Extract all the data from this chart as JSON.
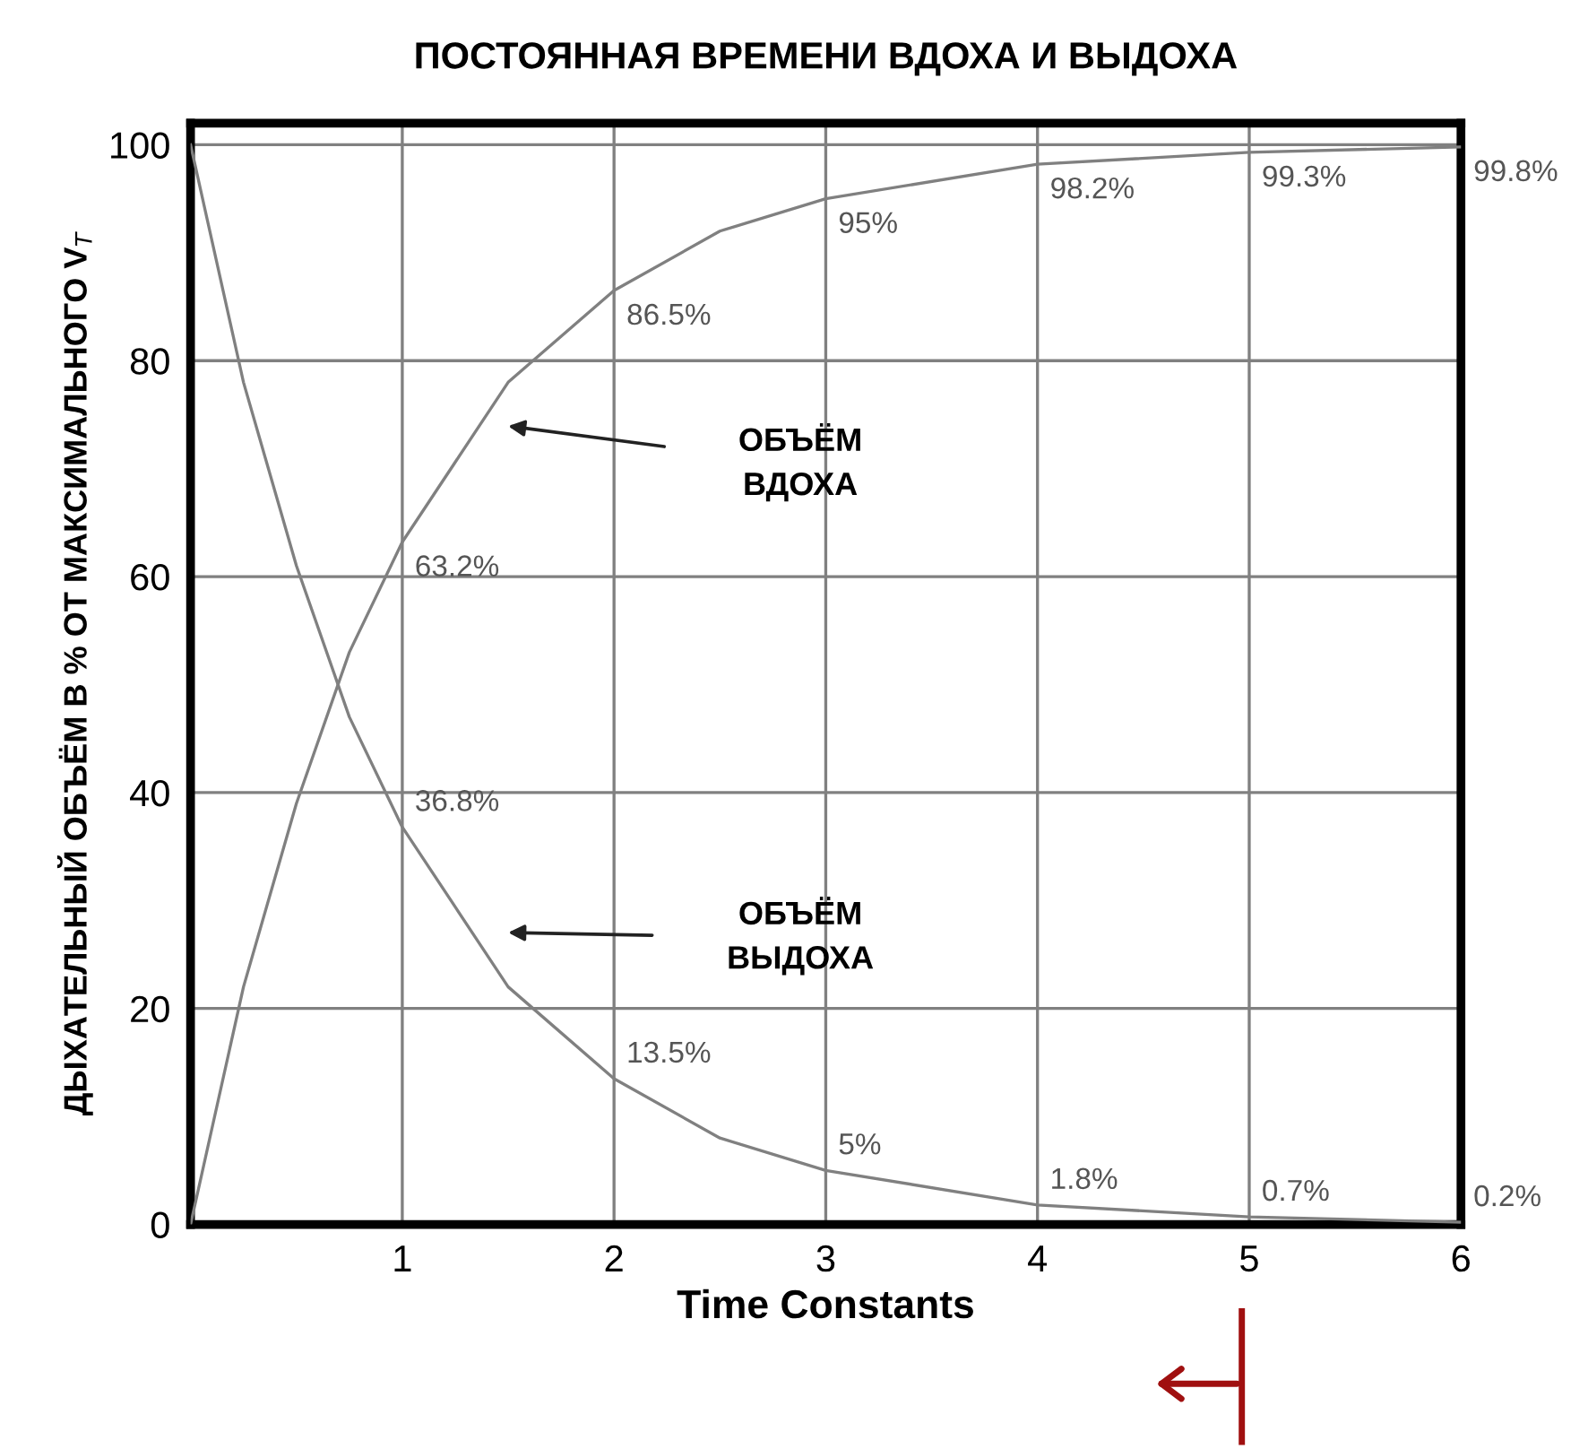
{
  "chart_data": {
    "type": "line",
    "title": "ПОСТОЯННАЯ ВРЕМЕНИ ВДОХА И ВЫДОХА",
    "xlabel": "Time Constants",
    "ylabel": "ДЫХАТЕЛЬНЫЙ ОБЪЁМ В % ОТ МАКСИМАЛЬНОГО V$_{T}$",
    "x": [
      0,
      0.25,
      0.5,
      0.75,
      1,
      1.5,
      2,
      2.5,
      3,
      4,
      5,
      6
    ],
    "series": [
      {
        "color": "#808080",
        "values": [
          0,
          22,
          39,
          53,
          63.2,
          78,
          86.5,
          92,
          95,
          98.2,
          99.3,
          99.8
        ],
        "value_labels": [
          null,
          null,
          null,
          null,
          "63.2%",
          null,
          "86.5%",
          null,
          "95%",
          "98.2%",
          "99.3%",
          "99.8%"
        ]
      },
      {
        "color": "#808080",
        "values": [
          100,
          78,
          61,
          47,
          36.8,
          22,
          13.5,
          8,
          5,
          1.8,
          0.7,
          0.2
        ],
        "value_labels": [
          null,
          null,
          null,
          null,
          "36.8%",
          null,
          "13.5%",
          null,
          "5%",
          "1.8%",
          "0.7%",
          "0.2%"
        ]
      }
    ],
    "annotations": [
      "ОБЪЁМ\nВДОХА",
      "ОБЪЁМ\nВЫДОХА"
    ],
    "xlim": [
      0,
      6
    ],
    "ylim": [
      0,
      102
    ],
    "xticks": [
      1,
      2,
      3,
      4,
      5,
      6
    ],
    "yticks": [
      0,
      20,
      40,
      60,
      80,
      100
    ],
    "grid": true,
    "line_style": "solid"
  }
}
